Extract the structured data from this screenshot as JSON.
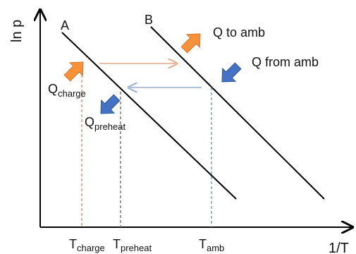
{
  "axes": {
    "y_label": "ln p",
    "x_label": "1/T"
  },
  "lines": {
    "a_label": "A",
    "b_label": "B"
  },
  "annotations": {
    "q_to_amb": "Q to amb",
    "q_from_amb": "Q from amb",
    "q_charge_main": "Q",
    "q_charge_sub": "charge",
    "q_preheat_main": "Q",
    "q_preheat_sub": "preheat"
  },
  "temperatures": {
    "t_charge_main": "T",
    "t_charge_sub": "charge",
    "t_preheat_main": "T",
    "t_preheat_sub": "preheat",
    "t_amb_main": "T",
    "t_amb_sub": "amb"
  },
  "colors": {
    "orange": "#F7923A",
    "blue": "#4472C4",
    "orange_dash": "#C9956B",
    "blue_dash": "#7F93B5",
    "arrow_orange_thin": "#E4B49A",
    "arrow_blue_thin": "#A7B9CF"
  },
  "icons": {
    "orange_arrow": "thick-arrow-up-right",
    "blue_arrow": "thick-arrow-down-left"
  }
}
